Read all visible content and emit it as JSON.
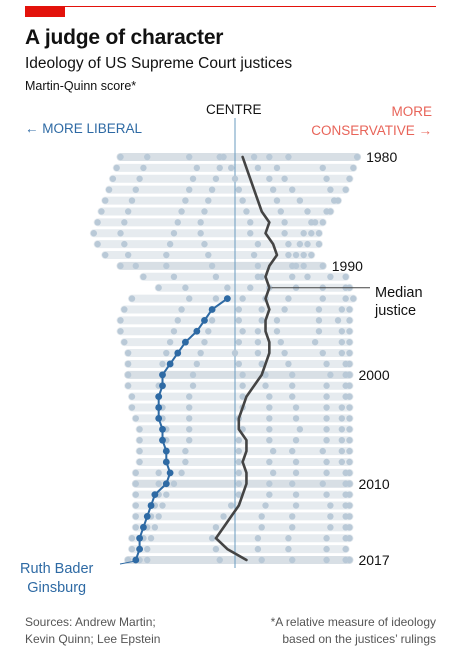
{
  "header": {
    "title": "A judge of character",
    "subtitle": "Ideology of US Supreme Court justices",
    "note": "Martin-Quinn score*"
  },
  "labels": {
    "more_liberal": "← MORE LIBERAL",
    "centre": "CENTRE",
    "more": "MORE",
    "conservative": "CONSERVATIVE →",
    "median_line1": "Median",
    "median_line2": "justice",
    "rbg_line1": "Ruth Bader",
    "rbg_line2": "Ginsburg"
  },
  "footer": {
    "sources_line1": "Sources: Andrew Martin;",
    "sources_line2": "Kevin Quinn; Lee Epstein",
    "footnote_line1": "*A relative measure of ideology",
    "footnote_line2": "based on the justices’ rulings"
  },
  "colors": {
    "dot": "#b9c9d7",
    "row_band": "#e6ebef",
    "highlight_band": "#d8dfe5",
    "ginsburg": "#2e6aa4",
    "median": "#444444",
    "centre_line": "#6a9bbf",
    "conservative": "#e86459",
    "liberal": "#2e6aa4"
  },
  "chart_data": {
    "type": "scatter",
    "title": "A judge of character",
    "subtitle": "Ideology of US Supreme Court justices",
    "ylabel": "",
    "xlabel": "Martin-Quinn score*",
    "x_direction": "left = more liberal, right = more conservative",
    "years": [
      1980,
      1981,
      1982,
      1983,
      1984,
      1985,
      1986,
      1987,
      1988,
      1989,
      1990,
      1991,
      1992,
      1993,
      1994,
      1995,
      1996,
      1997,
      1998,
      1999,
      2000,
      2001,
      2002,
      2003,
      2004,
      2005,
      2006,
      2007,
      2008,
      2009,
      2010,
      2011,
      2012,
      2013,
      2014,
      2015,
      2016,
      2017
    ],
    "year_tick_labels": [
      "1980",
      "1990",
      "2000",
      "2010",
      "2017"
    ],
    "x_range": [
      -3.8,
      3.8
    ],
    "justice_scores": [
      [
        -3.0,
        -2.3,
        -1.2,
        -0.4,
        -0.3,
        0.5,
        0.9,
        1.4,
        3.2
      ],
      [
        -3.1,
        -2.4,
        -1.0,
        -0.4,
        -0.1,
        0.6,
        1.1,
        2.3,
        3.1
      ],
      [
        -3.2,
        -2.5,
        -1.1,
        -0.5,
        0.0,
        0.9,
        1.3,
        2.4,
        3.0
      ],
      [
        -3.3,
        -2.6,
        -1.2,
        -0.6,
        0.1,
        1.0,
        1.5,
        2.5,
        2.9
      ],
      [
        -3.4,
        -2.7,
        -1.3,
        -0.7,
        0.2,
        1.1,
        1.7,
        2.6,
        2.7
      ],
      [
        -3.5,
        -2.8,
        -1.4,
        -0.8,
        0.3,
        1.2,
        1.9,
        2.4,
        2.5
      ],
      [
        -3.6,
        -2.9,
        -1.5,
        -0.9,
        0.4,
        1.3,
        2.0,
        2.1,
        2.3
      ],
      [
        -3.7,
        -3.0,
        -1.6,
        -0.9,
        0.4,
        1.3,
        1.8,
        2.0,
        2.2
      ],
      [
        -3.6,
        -2.9,
        -1.7,
        -0.8,
        0.6,
        1.4,
        1.7,
        1.9,
        2.2
      ],
      [
        -3.4,
        -2.8,
        -1.8,
        -0.7,
        0.5,
        1.4,
        1.6,
        1.8,
        2.0
      ],
      [
        -3.0,
        -2.6,
        -1.8,
        -0.6,
        0.6,
        1.5,
        1.6,
        1.8,
        2.3
      ],
      [
        -2.4,
        -1.6,
        -0.5,
        0.6,
        0.7,
        1.5,
        1.9,
        2.5,
        2.9
      ],
      [
        -2.0,
        -1.3,
        -0.2,
        0.4,
        0.9,
        1.6,
        2.3,
        2.9,
        3.0
      ],
      [
        -2.7,
        -1.2,
        -0.5,
        0.2,
        0.8,
        1.4,
        2.3,
        2.9,
        3.1
      ],
      [
        -2.9,
        -1.4,
        -0.6,
        0.1,
        0.7,
        1.3,
        2.2,
        2.8,
        3.0
      ],
      [
        -3.0,
        -1.5,
        -0.6,
        0.1,
        0.7,
        1.1,
        2.2,
        2.7,
        3.0
      ],
      [
        -3.0,
        -1.6,
        -0.7,
        0.2,
        0.6,
        1.1,
        2.2,
        2.8,
        3.0
      ],
      [
        -2.9,
        -1.7,
        -0.8,
        0.1,
        0.6,
        1.2,
        2.1,
        2.8,
        3.0
      ],
      [
        -2.8,
        -1.8,
        -0.9,
        0.0,
        0.6,
        1.3,
        2.3,
        2.8,
        3.0
      ],
      [
        -2.8,
        -1.9,
        -1.0,
        0.1,
        0.7,
        1.4,
        2.4,
        2.9,
        3.0
      ],
      [
        -2.8,
        -1.9,
        -1.1,
        0.2,
        0.8,
        1.5,
        2.5,
        2.9,
        3.0
      ],
      [
        -2.8,
        -2.0,
        -1.1,
        0.2,
        0.8,
        1.5,
        2.4,
        2.9,
        3.0
      ],
      [
        -2.7,
        -2.0,
        -1.2,
        0.2,
        0.9,
        1.5,
        2.4,
        2.9,
        3.0
      ],
      [
        -2.7,
        -1.9,
        -1.2,
        0.2,
        0.9,
        1.6,
        2.4,
        2.8,
        3.0
      ],
      [
        -2.6,
        -1.9,
        -1.2,
        0.1,
        0.9,
        1.6,
        2.4,
        2.8,
        3.0
      ],
      [
        -2.5,
        -1.8,
        -1.2,
        0.2,
        0.9,
        1.7,
        2.4,
        2.8,
        3.0
      ],
      [
        -2.5,
        -1.8,
        -1.2,
        0.1,
        0.9,
        1.6,
        2.4,
        2.8,
        3.0
      ],
      [
        -2.5,
        -1.8,
        -1.3,
        0.1,
        1.0,
        1.5,
        2.3,
        2.8,
        3.0
      ],
      [
        -2.5,
        -1.8,
        -1.3,
        0.1,
        0.9,
        1.6,
        2.4,
        2.8,
        3.0
      ],
      [
        -2.6,
        -2.0,
        -1.4,
        0.1,
        1.0,
        1.6,
        2.4,
        2.9,
        3.0
      ],
      [
        -2.6,
        -2.0,
        -1.6,
        0.1,
        0.9,
        1.5,
        2.3,
        2.9,
        3.0
      ],
      [
        -2.6,
        -2.0,
        -1.8,
        0.1,
        0.9,
        1.6,
        2.4,
        2.9,
        3.0
      ],
      [
        -2.6,
        -2.1,
        -1.9,
        -0.1,
        0.8,
        1.6,
        2.5,
        2.9,
        3.0
      ],
      [
        -2.6,
        -2.2,
        -2.0,
        -0.3,
        0.7,
        1.5,
        2.5,
        2.9,
        3.0
      ],
      [
        -2.6,
        -2.3,
        -2.1,
        -0.5,
        0.7,
        1.5,
        2.5,
        2.9,
        3.0
      ],
      [
        -2.7,
        -2.4,
        -2.2,
        -0.6,
        0.6,
        1.4,
        2.4,
        2.9,
        3.0
      ],
      [
        -2.7,
        -2.5,
        -2.3,
        -0.5,
        0.6,
        1.4,
        2.4,
        2.9
      ],
      [
        -2.8,
        -2.5,
        -2.3,
        -0.4,
        0.7,
        1.5,
        2.4,
        2.9,
        3.0
      ]
    ],
    "series": [
      {
        "name": "Median justice",
        "years": [
          1980,
          1981,
          1982,
          1983,
          1984,
          1985,
          1986,
          1987,
          1988,
          1989,
          1990,
          1991,
          1992,
          1993,
          1994,
          1995,
          1996,
          1997,
          1998,
          1999,
          2000,
          2001,
          2002,
          2003,
          2004,
          2005,
          2006,
          2007,
          2008,
          2009,
          2010,
          2011,
          2012,
          2013,
          2014,
          2015,
          2016,
          2017
        ],
        "values": [
          0.2,
          0.3,
          0.4,
          0.5,
          0.6,
          0.7,
          0.9,
          0.8,
          1.0,
          1.1,
          0.9,
          0.8,
          0.9,
          0.8,
          0.9,
          0.8,
          0.8,
          0.9,
          0.9,
          0.8,
          0.7,
          0.5,
          0.3,
          0.2,
          0.1,
          0.1,
          0.3,
          0.3,
          0.2,
          0.3,
          0.3,
          0.2,
          0.1,
          -0.1,
          -0.3,
          -0.5,
          -0.2,
          0.3
        ]
      },
      {
        "name": "Ruth Bader Ginsburg",
        "years": [
          1993,
          1994,
          1995,
          1996,
          1997,
          1998,
          1999,
          2000,
          2001,
          2002,
          2003,
          2004,
          2005,
          2006,
          2007,
          2008,
          2009,
          2010,
          2011,
          2012,
          2013,
          2014,
          2015,
          2016,
          2017
        ],
        "values": [
          -0.2,
          -0.6,
          -0.8,
          -1.0,
          -1.3,
          -1.5,
          -1.7,
          -1.9,
          -1.9,
          -2.0,
          -2.0,
          -2.0,
          -1.9,
          -1.9,
          -1.8,
          -1.8,
          -1.7,
          -1.8,
          -2.1,
          -2.2,
          -2.3,
          -2.4,
          -2.5,
          -2.5,
          -2.6
        ]
      }
    ]
  }
}
